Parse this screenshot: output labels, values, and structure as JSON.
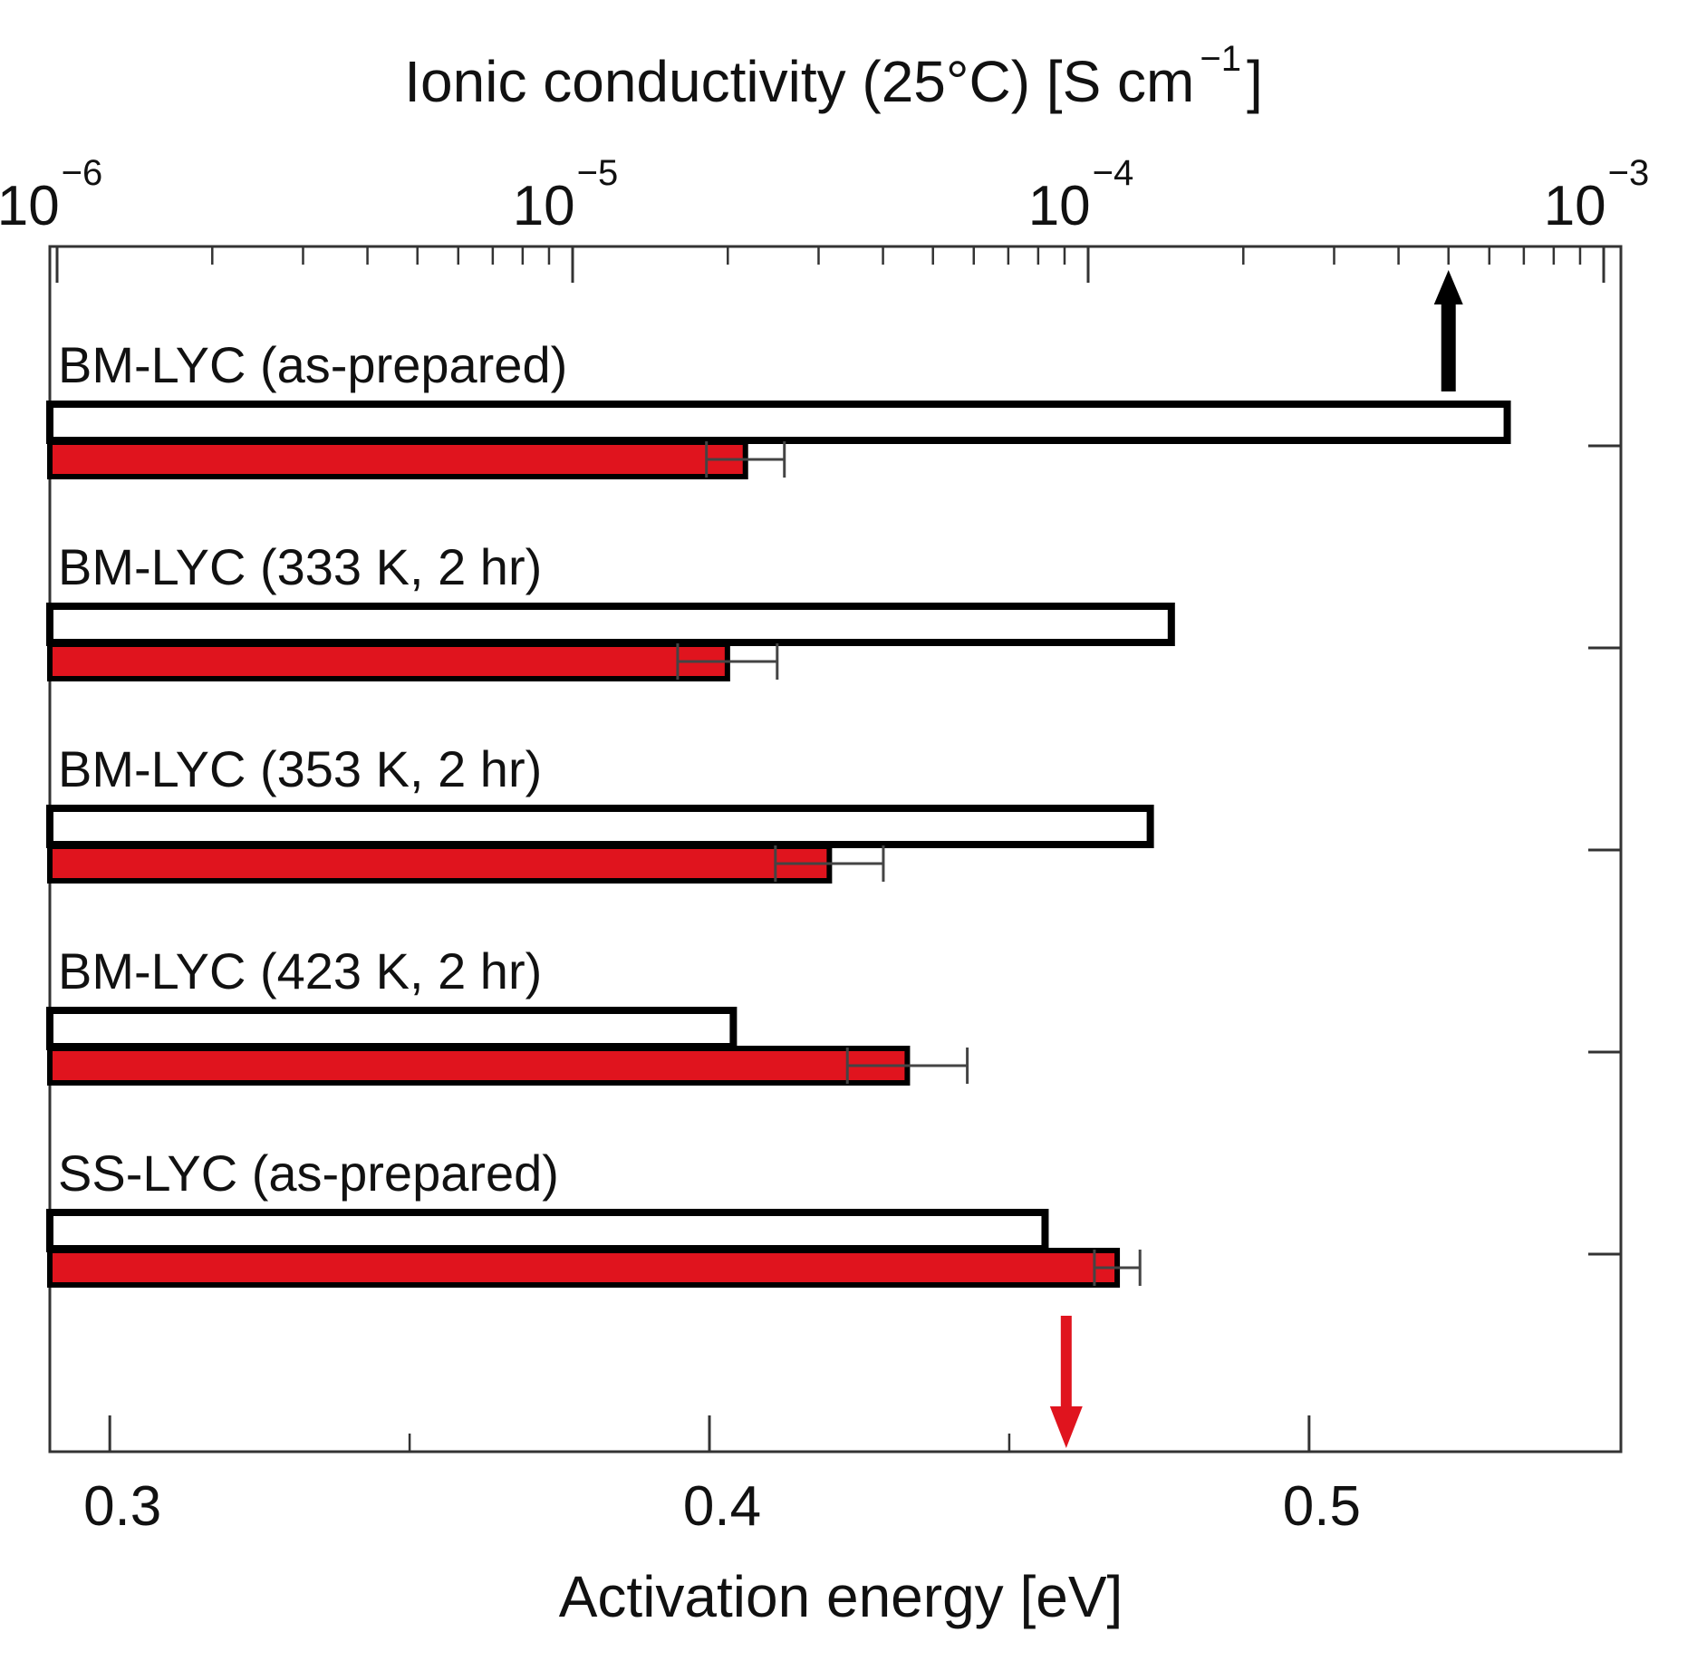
{
  "chart_data": {
    "type": "bar",
    "orientation": "horizontal",
    "categories": [
      "BM-LYC (as-prepared)",
      "BM-LYC (333 K, 2 hr)",
      "BM-LYC (353 K, 2 hr)",
      "BM-LYC (423 K, 2 hr)",
      "SS-LYC (as-prepared)"
    ],
    "series": [
      {
        "name": "Ionic conductivity (25°C)",
        "axis": "top",
        "scale": "log",
        "fill": "#ffffff",
        "stroke": "#000000",
        "values": [
          0.00065,
          0.000145,
          0.000132,
          2.05e-05,
          8.25e-05
        ]
      },
      {
        "name": "Activation energy",
        "axis": "bottom",
        "scale": "linear",
        "fill": "#e0141e",
        "stroke": "#000000",
        "values": [
          0.406,
          0.403,
          0.42,
          0.433,
          0.468
        ],
        "errors": [
          0.0065,
          0.0083,
          0.009,
          0.01,
          0.0038
        ]
      }
    ],
    "top_axis": {
      "label_main": "Ionic conductivity (25°C) [S cm",
      "label_sup": "−1",
      "label_close": "]",
      "min": 1e-06,
      "max": 0.001,
      "ticks": [
        {
          "base": "10",
          "exp": "−6",
          "value": 1e-06
        },
        {
          "base": "10",
          "exp": "−5",
          "value": 1e-05
        },
        {
          "base": "10",
          "exp": "−4",
          "value": 0.0001
        },
        {
          "base": "10",
          "exp": "−3",
          "value": 0.001
        }
      ]
    },
    "bottom_axis": {
      "label": "Activation energy [eV]",
      "min": 0.29,
      "max": 0.552,
      "ticks": [
        {
          "label": "0.3",
          "value": 0.3
        },
        {
          "label": "0.4",
          "value": 0.4
        },
        {
          "label": "0.5",
          "value": 0.5
        }
      ],
      "minor_ticks": [
        0.35,
        0.45
      ]
    },
    "annotations": [
      {
        "type": "arrow",
        "direction": "up",
        "color": "#000000",
        "axis": "top",
        "value": 0.0005
      },
      {
        "type": "arrow",
        "direction": "down",
        "color": "#e0141e",
        "axis": "bottom",
        "value": 0.4595
      }
    ]
  }
}
